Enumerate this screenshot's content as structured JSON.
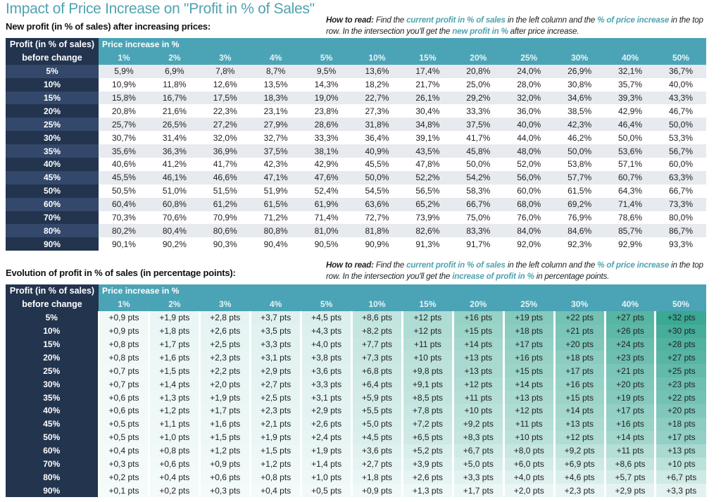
{
  "title": "Impact of Price Increase on \"Profit in % of Sales\"",
  "table1": {
    "subtitle": "New profit (in % of sales) after increasing prices:",
    "howto": {
      "lead": "How to read:",
      "t1": " Find the ",
      "h1": "current profit in % of sales",
      "t2": " in the left column and the ",
      "h2": "% of price increase",
      "t3": " in the top row. In the intersection you'll get the ",
      "h3": "new profit in %",
      "t4": " after price increase."
    },
    "corner_line1": "Profit (in % of sales)",
    "corner_line2": "before change",
    "header_label": "Price increase in %",
    "columns": [
      "1%",
      "2%",
      "3%",
      "4%",
      "5%",
      "10%",
      "15%",
      "20%",
      "25%",
      "30%",
      "40%",
      "50%"
    ],
    "rows": [
      {
        "label": "5%",
        "values": [
          "5,9%",
          "6,9%",
          "7,8%",
          "8,7%",
          "9,5%",
          "13,6%",
          "17,4%",
          "20,8%",
          "24,0%",
          "26,9%",
          "32,1%",
          "36,7%"
        ]
      },
      {
        "label": "10%",
        "values": [
          "10,9%",
          "11,8%",
          "12,6%",
          "13,5%",
          "14,3%",
          "18,2%",
          "21,7%",
          "25,0%",
          "28,0%",
          "30,8%",
          "35,7%",
          "40,0%"
        ]
      },
      {
        "label": "15%",
        "values": [
          "15,8%",
          "16,7%",
          "17,5%",
          "18,3%",
          "19,0%",
          "22,7%",
          "26,1%",
          "29,2%",
          "32,0%",
          "34,6%",
          "39,3%",
          "43,3%"
        ]
      },
      {
        "label": "20%",
        "values": [
          "20,8%",
          "21,6%",
          "22,3%",
          "23,1%",
          "23,8%",
          "27,3%",
          "30,4%",
          "33,3%",
          "36,0%",
          "38,5%",
          "42,9%",
          "46,7%"
        ]
      },
      {
        "label": "25%",
        "values": [
          "25,7%",
          "26,5%",
          "27,2%",
          "27,9%",
          "28,6%",
          "31,8%",
          "34,8%",
          "37,5%",
          "40,0%",
          "42,3%",
          "46,4%",
          "50,0%"
        ]
      },
      {
        "label": "30%",
        "values": [
          "30,7%",
          "31,4%",
          "32,0%",
          "32,7%",
          "33,3%",
          "36,4%",
          "39,1%",
          "41,7%",
          "44,0%",
          "46,2%",
          "50,0%",
          "53,3%"
        ]
      },
      {
        "label": "35%",
        "values": [
          "35,6%",
          "36,3%",
          "36,9%",
          "37,5%",
          "38,1%",
          "40,9%",
          "43,5%",
          "45,8%",
          "48,0%",
          "50,0%",
          "53,6%",
          "56,7%"
        ]
      },
      {
        "label": "40%",
        "values": [
          "40,6%",
          "41,2%",
          "41,7%",
          "42,3%",
          "42,9%",
          "45,5%",
          "47,8%",
          "50,0%",
          "52,0%",
          "53,8%",
          "57,1%",
          "60,0%"
        ]
      },
      {
        "label": "45%",
        "values": [
          "45,5%",
          "46,1%",
          "46,6%",
          "47,1%",
          "47,6%",
          "50,0%",
          "52,2%",
          "54,2%",
          "56,0%",
          "57,7%",
          "60,7%",
          "63,3%"
        ]
      },
      {
        "label": "50%",
        "values": [
          "50,5%",
          "51,0%",
          "51,5%",
          "51,9%",
          "52,4%",
          "54,5%",
          "56,5%",
          "58,3%",
          "60,0%",
          "61,5%",
          "64,3%",
          "66,7%"
        ]
      },
      {
        "label": "60%",
        "values": [
          "60,4%",
          "60,8%",
          "61,2%",
          "61,5%",
          "61,9%",
          "63,6%",
          "65,2%",
          "66,7%",
          "68,0%",
          "69,2%",
          "71,4%",
          "73,3%"
        ]
      },
      {
        "label": "70%",
        "values": [
          "70,3%",
          "70,6%",
          "70,9%",
          "71,2%",
          "71,4%",
          "72,7%",
          "73,9%",
          "75,0%",
          "76,0%",
          "76,9%",
          "78,6%",
          "80,0%"
        ]
      },
      {
        "label": "80%",
        "values": [
          "80,2%",
          "80,4%",
          "80,6%",
          "80,8%",
          "81,0%",
          "81,8%",
          "82,6%",
          "83,3%",
          "84,0%",
          "84,6%",
          "85,7%",
          "86,7%"
        ]
      },
      {
        "label": "90%",
        "values": [
          "90,1%",
          "90,2%",
          "90,3%",
          "90,4%",
          "90,5%",
          "90,9%",
          "91,3%",
          "91,7%",
          "92,0%",
          "92,3%",
          "92,9%",
          "93,3%"
        ]
      }
    ]
  },
  "table2": {
    "subtitle": "Evolution of profit in % of sales (in percentage points):",
    "howto": {
      "lead": "How to read:",
      "t1": " Find the ",
      "h1": "current profit in % of sales",
      "t2": " in the left column and the ",
      "h2": "% of price increase",
      "t3": " in the top row. In the intersection you'll get the ",
      "h3": "increase of profit in %",
      "t4": " in percentage points."
    },
    "corner_line1": "Profit (in % of sales)",
    "corner_line2": "before change",
    "header_label": "Price increase in %",
    "columns": [
      "1%",
      "2%",
      "3%",
      "4%",
      "5%",
      "10%",
      "15%",
      "20%",
      "25%",
      "30%",
      "40%",
      "50%"
    ],
    "heat_colors": {
      "low": "#f5fbfb",
      "high": "#3aa893"
    },
    "rows": [
      {
        "label": "5%",
        "values": [
          "+0,9 pts",
          "+1,9 pts",
          "+2,8 pts",
          "+3,7 pts",
          "+4,5 pts",
          "+8,6 pts",
          "+12 pts",
          "+16 pts",
          "+19 pts",
          "+22 pts",
          "+27 pts",
          "+32 pts"
        ]
      },
      {
        "label": "10%",
        "values": [
          "+0,9 pts",
          "+1,8 pts",
          "+2,6 pts",
          "+3,5 pts",
          "+4,3 pts",
          "+8,2 pts",
          "+12 pts",
          "+15 pts",
          "+18 pts",
          "+21 pts",
          "+26 pts",
          "+30 pts"
        ]
      },
      {
        "label": "15%",
        "values": [
          "+0,8 pts",
          "+1,7 pts",
          "+2,5 pts",
          "+3,3 pts",
          "+4,0 pts",
          "+7,7 pts",
          "+11 pts",
          "+14 pts",
          "+17 pts",
          "+20 pts",
          "+24 pts",
          "+28 pts"
        ]
      },
      {
        "label": "20%",
        "values": [
          "+0,8 pts",
          "+1,6 pts",
          "+2,3 pts",
          "+3,1 pts",
          "+3,8 pts",
          "+7,3 pts",
          "+10 pts",
          "+13 pts",
          "+16 pts",
          "+18 pts",
          "+23 pts",
          "+27 pts"
        ]
      },
      {
        "label": "25%",
        "values": [
          "+0,7 pts",
          "+1,5 pts",
          "+2,2 pts",
          "+2,9 pts",
          "+3,6 pts",
          "+6,8 pts",
          "+9,8 pts",
          "+13 pts",
          "+15 pts",
          "+17 pts",
          "+21 pts",
          "+25 pts"
        ]
      },
      {
        "label": "30%",
        "values": [
          "+0,7 pts",
          "+1,4 pts",
          "+2,0 pts",
          "+2,7 pts",
          "+3,3 pts",
          "+6,4 pts",
          "+9,1 pts",
          "+12 pts",
          "+14 pts",
          "+16 pts",
          "+20 pts",
          "+23 pts"
        ]
      },
      {
        "label": "35%",
        "values": [
          "+0,6 pts",
          "+1,3 pts",
          "+1,9 pts",
          "+2,5 pts",
          "+3,1 pts",
          "+5,9 pts",
          "+8,5 pts",
          "+11 pts",
          "+13 pts",
          "+15 pts",
          "+19 pts",
          "+22 pts"
        ]
      },
      {
        "label": "40%",
        "values": [
          "+0,6 pts",
          "+1,2 pts",
          "+1,7 pts",
          "+2,3 pts",
          "+2,9 pts",
          "+5,5 pts",
          "+7,8 pts",
          "+10 pts",
          "+12 pts",
          "+14 pts",
          "+17 pts",
          "+20 pts"
        ]
      },
      {
        "label": "45%",
        "values": [
          "+0,5 pts",
          "+1,1 pts",
          "+1,6 pts",
          "+2,1 pts",
          "+2,6 pts",
          "+5,0 pts",
          "+7,2 pts",
          "+9,2 pts",
          "+11 pts",
          "+13 pts",
          "+16 pts",
          "+18 pts"
        ]
      },
      {
        "label": "50%",
        "values": [
          "+0,5 pts",
          "+1,0 pts",
          "+1,5 pts",
          "+1,9 pts",
          "+2,4 pts",
          "+4,5 pts",
          "+6,5 pts",
          "+8,3 pts",
          "+10 pts",
          "+12 pts",
          "+14 pts",
          "+17 pts"
        ]
      },
      {
        "label": "60%",
        "values": [
          "+0,4 pts",
          "+0,8 pts",
          "+1,2 pts",
          "+1,5 pts",
          "+1,9 pts",
          "+3,6 pts",
          "+5,2 pts",
          "+6,7 pts",
          "+8,0 pts",
          "+9,2 pts",
          "+11 pts",
          "+13 pts"
        ]
      },
      {
        "label": "70%",
        "values": [
          "+0,3 pts",
          "+0,6 pts",
          "+0,9 pts",
          "+1,2 pts",
          "+1,4 pts",
          "+2,7 pts",
          "+3,9 pts",
          "+5,0 pts",
          "+6,0 pts",
          "+6,9 pts",
          "+8,6 pts",
          "+10 pts"
        ]
      },
      {
        "label": "80%",
        "values": [
          "+0,2 pts",
          "+0,4 pts",
          "+0,6 pts",
          "+0,8 pts",
          "+1,0 pts",
          "+1,8 pts",
          "+2,6 pts",
          "+3,3 pts",
          "+4,0 pts",
          "+4,6 pts",
          "+5,7 pts",
          "+6,7 pts"
        ]
      },
      {
        "label": "90%",
        "values": [
          "+0,1 pts",
          "+0,2 pts",
          "+0,3 pts",
          "+0,4 pts",
          "+0,5 pts",
          "+0,9 pts",
          "+1,3 pts",
          "+1,7 pts",
          "+2,0 pts",
          "+2,3 pts",
          "+2,9 pts",
          "+3,3 pts"
        ]
      }
    ]
  }
}
